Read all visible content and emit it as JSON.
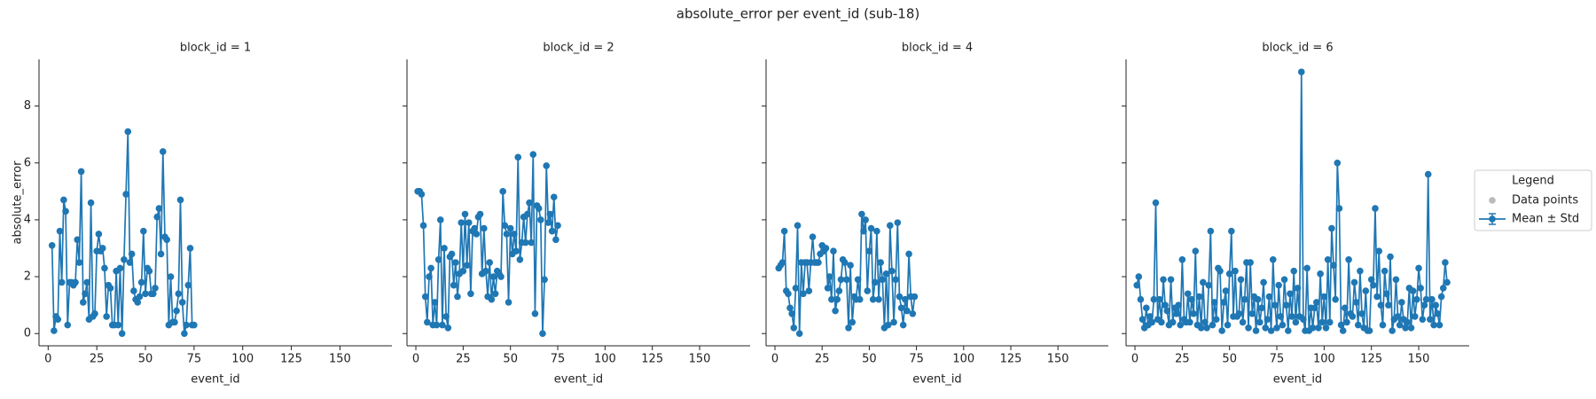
{
  "title": "absolute_error per event_id (sub-18)",
  "legend": {
    "title": "Legend",
    "corner": "right",
    "entries": [
      {
        "name": "Data points",
        "color": "#bbbbbb"
      },
      {
        "name": "Mean ± Std",
        "color": "#1f77b4"
      }
    ]
  },
  "chart_data": [
    {
      "type": "line",
      "title": "block_id = 1",
      "xlabel": "event_id",
      "ylabel": "absolute_error",
      "xlim": [
        -4.7,
        176.7
      ],
      "ylim": [
        -0.43,
        9.64
      ],
      "xticks": [
        0,
        25,
        50,
        75,
        100,
        125,
        150
      ],
      "yticks": [
        0,
        2,
        4,
        6,
        8
      ],
      "x": [
        2,
        3,
        4,
        5,
        6,
        7,
        8,
        9,
        10,
        11,
        12,
        13,
        14,
        15,
        16,
        17,
        18,
        19,
        20,
        21,
        22,
        23,
        24,
        25,
        26,
        27,
        28,
        29,
        30,
        31,
        32,
        33,
        34,
        35,
        36,
        37,
        38,
        39,
        40,
        41,
        42,
        43,
        44,
        45,
        46,
        47,
        48,
        49,
        50,
        51,
        52,
        53,
        54,
        55,
        56,
        57,
        58,
        59,
        60,
        61,
        62,
        63,
        64,
        65,
        66,
        67,
        68,
        69,
        70,
        71,
        72,
        73,
        74,
        75
      ],
      "series": [
        {
          "color": "#1f77b4",
          "values": [
            3.1,
            0.1,
            0.6,
            0.5,
            3.6,
            1.8,
            4.7,
            4.3,
            0.3,
            1.8,
            1.8,
            1.7,
            1.8,
            3.3,
            2.5,
            5.7,
            1.1,
            1.4,
            1.8,
            0.5,
            4.6,
            0.6,
            0.7,
            2.9,
            3.5,
            2.9,
            3.0,
            2.3,
            0.6,
            1.7,
            1.6,
            0.3,
            0.3,
            2.2,
            0.3,
            2.3,
            0.0,
            2.6,
            4.9,
            7.1,
            2.5,
            2.8,
            1.5,
            1.2,
            1.1,
            1.3,
            1.8,
            3.6,
            1.4,
            2.3,
            2.2,
            1.4,
            1.4,
            1.6,
            4.1,
            4.4,
            2.8,
            6.4,
            3.4,
            3.3,
            0.3,
            2.0,
            0.4,
            0.4,
            0.8,
            1.4,
            4.7,
            1.1,
            0.0,
            0.3,
            1.7,
            3.0,
            0.3,
            0.3
          ]
        }
      ]
    },
    {
      "type": "line",
      "title": "block_id = 2",
      "xlabel": "event_id",
      "xlim": [
        -4.7,
        176.7
      ],
      "ylim": [
        -0.43,
        9.64
      ],
      "xticks": [
        0,
        25,
        50,
        75,
        100,
        125,
        150
      ],
      "yticks": [
        0,
        2,
        4,
        6,
        8
      ],
      "x": [
        1,
        2,
        3,
        4,
        5,
        6,
        7,
        8,
        9,
        10,
        11,
        12,
        13,
        14,
        15,
        16,
        17,
        18,
        19,
        20,
        21,
        22,
        23,
        24,
        25,
        26,
        27,
        28,
        29,
        30,
        31,
        32,
        33,
        34,
        35,
        36,
        37,
        38,
        39,
        40,
        41,
        42,
        43,
        44,
        45,
        46,
        47,
        48,
        49,
        50,
        51,
        52,
        53,
        54,
        55,
        56,
        57,
        58,
        59,
        60,
        61,
        62,
        63,
        64,
        65,
        66,
        67,
        68,
        69,
        70,
        71,
        72,
        73,
        74,
        75
      ],
      "series": [
        {
          "color": "#1f77b4",
          "values": [
            5.0,
            5.0,
            4.9,
            3.8,
            1.3,
            0.4,
            2.0,
            2.3,
            0.3,
            1.1,
            0.3,
            2.6,
            4.0,
            0.3,
            3.0,
            0.6,
            0.2,
            2.7,
            2.8,
            1.7,
            2.5,
            1.3,
            2.1,
            3.9,
            2.2,
            4.2,
            2.4,
            3.9,
            1.4,
            3.6,
            3.7,
            3.5,
            4.1,
            4.2,
            2.1,
            3.7,
            2.2,
            1.3,
            2.5,
            1.2,
            2.0,
            1.4,
            2.2,
            2.1,
            2.0,
            5.0,
            3.8,
            3.5,
            1.1,
            3.7,
            2.8,
            3.5,
            2.9,
            6.2,
            2.6,
            3.2,
            4.1,
            3.2,
            4.2,
            4.6,
            3.2,
            6.3,
            0.7,
            4.5,
            4.4,
            4.0,
            0.0,
            1.9,
            5.9,
            3.9,
            4.2,
            3.6,
            4.8,
            3.3,
            3.8
          ]
        }
      ]
    },
    {
      "type": "line",
      "title": "block_id = 4",
      "xlabel": "event_id",
      "xlim": [
        -4.7,
        176.7
      ],
      "ylim": [
        -0.43,
        9.64
      ],
      "xticks": [
        0,
        25,
        50,
        75,
        100,
        125,
        150
      ],
      "yticks": [
        0,
        2,
        4,
        6,
        8
      ],
      "x": [
        2,
        3,
        4,
        5,
        6,
        7,
        8,
        9,
        10,
        11,
        12,
        13,
        14,
        15,
        16,
        17,
        18,
        19,
        20,
        21,
        22,
        23,
        24,
        25,
        26,
        27,
        28,
        29,
        30,
        31,
        32,
        33,
        34,
        35,
        36,
        37,
        38,
        39,
        40,
        41,
        42,
        43,
        44,
        45,
        46,
        47,
        48,
        49,
        50,
        51,
        52,
        53,
        54,
        55,
        56,
        57,
        58,
        59,
        60,
        61,
        62,
        63,
        64,
        65,
        66,
        67,
        68,
        69,
        70,
        71,
        72,
        73,
        74
      ],
      "series": [
        {
          "color": "#1f77b4",
          "values": [
            2.3,
            2.4,
            2.5,
            3.6,
            1.5,
            1.4,
            0.9,
            0.7,
            0.2,
            1.6,
            3.8,
            0.0,
            2.5,
            1.4,
            2.5,
            2.5,
            1.5,
            2.5,
            3.4,
            2.5,
            2.5,
            2.5,
            2.8,
            3.1,
            2.9,
            3.0,
            1.6,
            2.0,
            1.2,
            2.9,
            0.8,
            1.2,
            1.5,
            1.9,
            2.6,
            2.5,
            1.9,
            0.2,
            2.4,
            0.4,
            1.3,
            1.2,
            1.9,
            1.2,
            4.2,
            3.6,
            4.0,
            1.5,
            2.9,
            3.7,
            1.2,
            1.8,
            3.6,
            1.2,
            2.5,
            1.9,
            0.2,
            2.1,
            0.3,
            3.8,
            2.2,
            0.4,
            1.9,
            3.9,
            1.3,
            0.9,
            0.3,
            1.2,
            0.8,
            2.8,
            1.3,
            0.7,
            1.3
          ]
        }
      ]
    },
    {
      "type": "line",
      "title": "block_id = 6",
      "xlabel": "event_id",
      "xlim": [
        -4.7,
        176.7
      ],
      "ylim": [
        -0.43,
        9.64
      ],
      "xticks": [
        0,
        25,
        50,
        75,
        100,
        125,
        150
      ],
      "yticks": [
        0,
        2,
        4,
        6,
        8
      ],
      "x": [
        1,
        2,
        3,
        4,
        5,
        6,
        7,
        8,
        9,
        10,
        11,
        12,
        13,
        14,
        15,
        16,
        17,
        18,
        19,
        20,
        21,
        22,
        23,
        24,
        25,
        26,
        27,
        28,
        29,
        30,
        31,
        32,
        33,
        34,
        35,
        36,
        37,
        38,
        39,
        40,
        41,
        42,
        43,
        44,
        45,
        46,
        47,
        48,
        49,
        50,
        51,
        52,
        53,
        54,
        55,
        56,
        57,
        58,
        59,
        60,
        61,
        62,
        63,
        64,
        65,
        66,
        67,
        68,
        69,
        70,
        71,
        72,
        73,
        74,
        75,
        76,
        77,
        78,
        79,
        80,
        81,
        82,
        83,
        84,
        85,
        86,
        87,
        88,
        89,
        90,
        91,
        92,
        93,
        94,
        95,
        96,
        97,
        98,
        99,
        100,
        101,
        102,
        103,
        104,
        105,
        106,
        107,
        108,
        109,
        110,
        111,
        112,
        113,
        114,
        115,
        116,
        117,
        118,
        119,
        120,
        121,
        122,
        123,
        124,
        125,
        126,
        127,
        128,
        129,
        130,
        131,
        132,
        133,
        134,
        135,
        136,
        137,
        138,
        139,
        140,
        141,
        142,
        143,
        144,
        145,
        146,
        147,
        148,
        149,
        150,
        151,
        152,
        153,
        154,
        155,
        156,
        157,
        158,
        159,
        160,
        161,
        162,
        163,
        164,
        165
      ],
      "series": [
        {
          "color": "#1f77b4",
          "values": [
            1.7,
            2.0,
            1.2,
            0.5,
            0.2,
            0.9,
            0.3,
            0.6,
            0.4,
            1.2,
            4.6,
            0.5,
            1.2,
            0.4,
            1.9,
            1.0,
            0.8,
            0.3,
            1.9,
            0.4,
            0.9,
            0.7,
            1.0,
            0.3,
            2.6,
            0.5,
            0.4,
            1.4,
            0.4,
            1.2,
            0.7,
            2.9,
            0.3,
            1.3,
            0.2,
            1.8,
            0.4,
            0.2,
            1.7,
            3.6,
            0.3,
            1.1,
            0.5,
            2.3,
            2.2,
            0.1,
            1.1,
            1.5,
            0.3,
            2.1,
            3.6,
            0.6,
            2.2,
            0.6,
            0.7,
            1.9,
            0.4,
            1.2,
            2.5,
            0.2,
            2.5,
            0.7,
            1.3,
            0.1,
            1.2,
            0.4,
            0.9,
            1.8,
            0.2,
            0.5,
            1.3,
            0.1,
            2.6,
            1.0,
            0.2,
            1.7,
            0.6,
            0.3,
            1.9,
            1.0,
            0.1,
            1.4,
            0.6,
            2.2,
            0.4,
            1.6,
            0.6,
            9.2,
            0.5,
            0.1,
            2.3,
            0.1,
            0.9,
            0.2,
            0.9,
            1.1,
            0.2,
            2.1,
            0.4,
            1.3,
            0.2,
            2.6,
            0.4,
            3.7,
            2.4,
            1.2,
            6.0,
            4.4,
            0.3,
            0.1,
            0.9,
            0.4,
            2.6,
            0.7,
            0.6,
            1.8,
            1.1,
            0.3,
            2.2,
            0.7,
            0.2,
            1.5,
            0.1,
            0.1,
            1.9,
            1.7,
            4.4,
            1.3,
            2.9,
            1.0,
            0.3,
            2.2,
            1.4,
            1.0,
            2.7,
            0.1,
            0.5,
            1.9,
            0.6,
            0.3,
            1.1,
            0.5,
            0.2,
            0.4,
            1.6,
            0.2,
            1.5,
            0.6,
            1.2,
            2.3,
            1.6,
            0.5,
            1.0,
            1.2,
            5.6,
            0.5,
            1.2,
            0.3,
            1.0,
            0.7,
            0.3,
            1.3,
            1.6,
            2.5,
            1.8
          ]
        }
      ]
    }
  ]
}
